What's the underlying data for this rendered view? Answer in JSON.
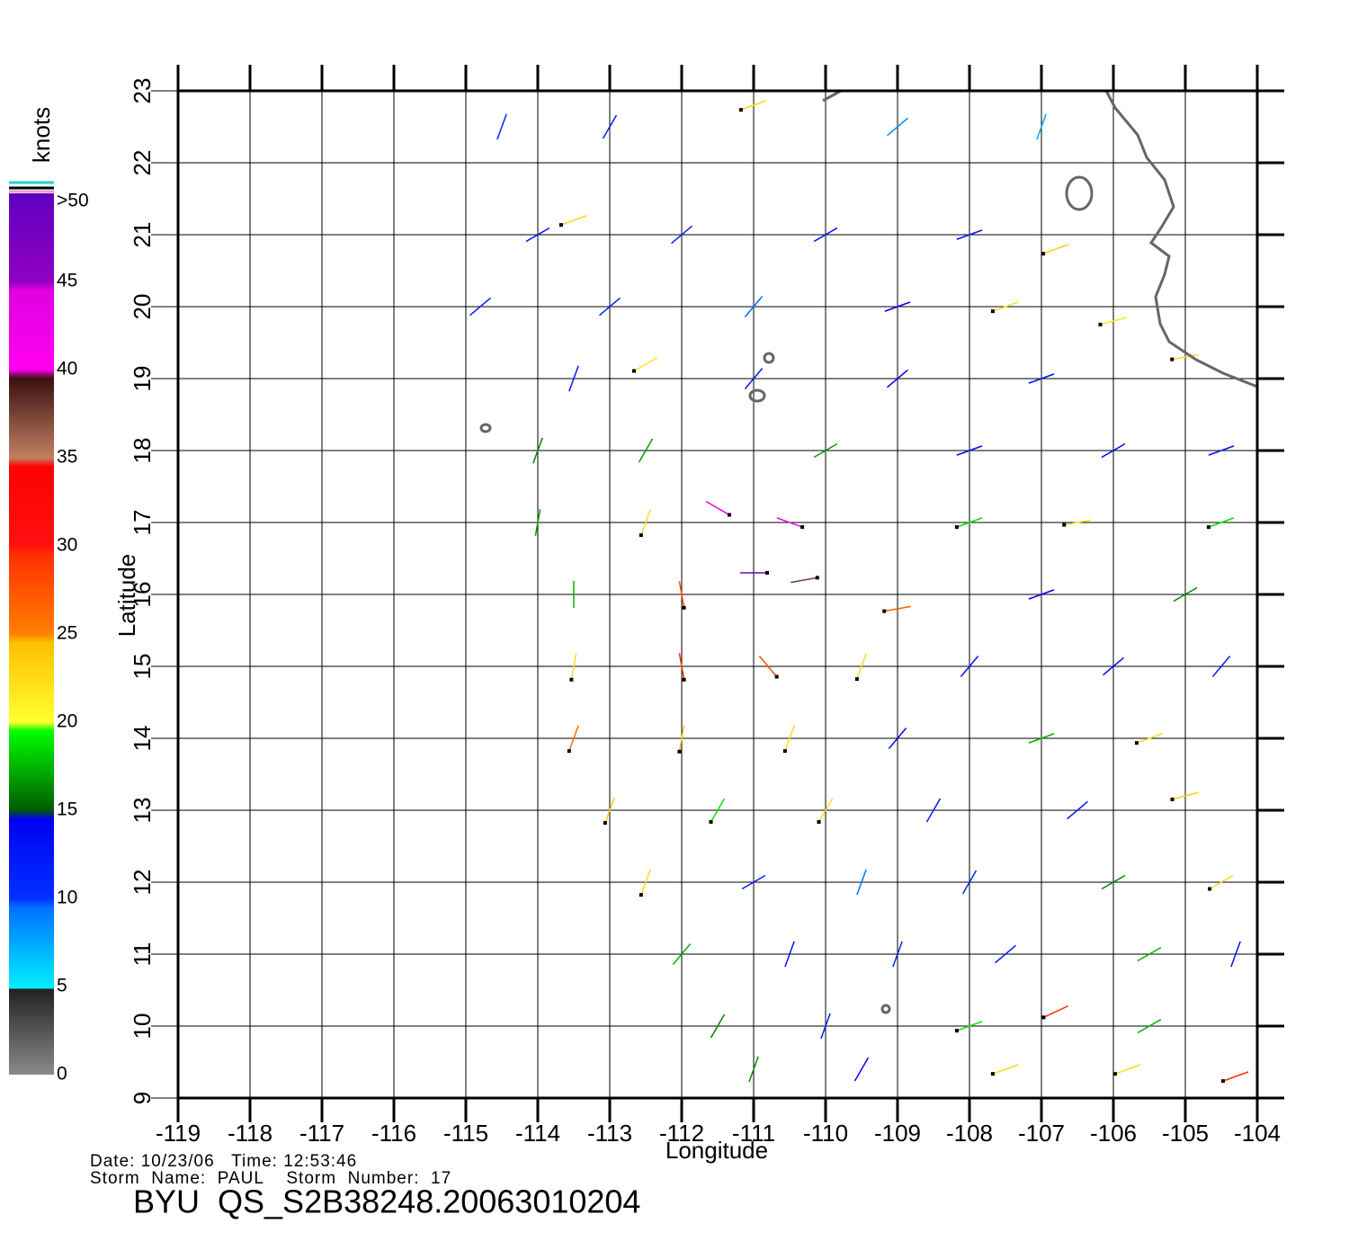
{
  "chart_data": {
    "type": "wind-map",
    "xlabel": "Longitude",
    "ylabel": "Latitude",
    "xlim": [
      -119,
      -104
    ],
    "ylim": [
      9,
      23
    ],
    "xticks": [
      -119,
      -118,
      -117,
      -116,
      -115,
      -114,
      -113,
      -112,
      -111,
      -110,
      -109,
      -108,
      -107,
      -106,
      -105,
      -104
    ],
    "yticks": [
      9,
      10,
      11,
      12,
      13,
      14,
      15,
      16,
      17,
      18,
      19,
      20,
      21,
      22,
      23
    ],
    "grid": true,
    "colorbar": {
      "label": "knots",
      "lim": [
        0,
        50
      ],
      "ticks": [
        0,
        5,
        10,
        15,
        20,
        25,
        30,
        35,
        40,
        45,
        {
          "value": 50,
          "label": ">50"
        }
      ]
    },
    "footer": {
      "date_line": "Date: 10/23/06   Time: 12:53:46",
      "storm_line": "Storm  Name:  PAUL    Storm  Number:  17",
      "file": "BYU  QS_S2B38248.20063010204"
    },
    "wind": [
      {
        "lon": -114.5,
        "lat": 22.5,
        "speed": 11,
        "direction": 200
      },
      {
        "lon": -113,
        "lat": 22.5,
        "speed": 12,
        "direction": 210
      },
      {
        "lon": -111,
        "lat": 22.8,
        "speed": 22,
        "direction": 250
      },
      {
        "lon": -109,
        "lat": 22.5,
        "speed": 9,
        "direction": 230
      },
      {
        "lon": -107,
        "lat": 22.5,
        "speed": 8,
        "direction": 200
      },
      {
        "lon": -114,
        "lat": 21,
        "speed": 14,
        "direction": 240
      },
      {
        "lon": -113.5,
        "lat": 21.2,
        "speed": 22,
        "direction": 250
      },
      {
        "lon": -112,
        "lat": 21,
        "speed": 11,
        "direction": 230
      },
      {
        "lon": -110,
        "lat": 21,
        "speed": 14,
        "direction": 240
      },
      {
        "lon": -108,
        "lat": 21,
        "speed": 13,
        "direction": 250
      },
      {
        "lon": -106.8,
        "lat": 20.8,
        "speed": 23,
        "direction": 250
      },
      {
        "lon": -114.8,
        "lat": 20,
        "speed": 12,
        "direction": 230
      },
      {
        "lon": -113,
        "lat": 20,
        "speed": 11,
        "direction": 230
      },
      {
        "lon": -111,
        "lat": 20,
        "speed": 10,
        "direction": 220
      },
      {
        "lon": -109,
        "lat": 20,
        "speed": 15,
        "direction": 250
      },
      {
        "lon": -107.5,
        "lat": 20,
        "speed": 22,
        "direction": 250
      },
      {
        "lon": -106,
        "lat": 19.8,
        "speed": 21,
        "direction": 255
      },
      {
        "lon": -113.5,
        "lat": 19,
        "speed": 12,
        "direction": 200
      },
      {
        "lon": -112.5,
        "lat": 19.2,
        "speed": 21,
        "direction": 240
      },
      {
        "lon": -111,
        "lat": 19,
        "speed": 12,
        "direction": 220
      },
      {
        "lon": -109,
        "lat": 19,
        "speed": 15,
        "direction": 230
      },
      {
        "lon": -107,
        "lat": 19,
        "speed": 13,
        "direction": 250
      },
      {
        "lon": -105,
        "lat": 19.3,
        "speed": 22,
        "direction": 260
      },
      {
        "lon": -114,
        "lat": 18,
        "speed": 16,
        "direction": 200
      },
      {
        "lon": -112.5,
        "lat": 18,
        "speed": 17,
        "direction": 210
      },
      {
        "lon": -110,
        "lat": 18,
        "speed": 17,
        "direction": 240
      },
      {
        "lon": -108,
        "lat": 18,
        "speed": 14,
        "direction": 250
      },
      {
        "lon": -106,
        "lat": 18,
        "speed": 14,
        "direction": 240
      },
      {
        "lon": -104.5,
        "lat": 18,
        "speed": 13,
        "direction": 250
      },
      {
        "lon": -114,
        "lat": 17,
        "speed": 17,
        "direction": 190
      },
      {
        "lon": -112.5,
        "lat": 17,
        "speed": 22,
        "direction": 200
      },
      {
        "lon": -111.5,
        "lat": 17.2,
        "speed": 45,
        "direction": 120
      },
      {
        "lon": -110.5,
        "lat": 17,
        "speed": 42,
        "direction": 110
      },
      {
        "lon": -108,
        "lat": 17,
        "speed": 20,
        "direction": 250
      },
      {
        "lon": -106.5,
        "lat": 17,
        "speed": 22,
        "direction": 260
      },
      {
        "lon": -104.5,
        "lat": 17,
        "speed": 20,
        "direction": 250
      },
      {
        "lon": -113.5,
        "lat": 16,
        "speed": 18,
        "direction": 180
      },
      {
        "lon": -112,
        "lat": 16,
        "speed": 28,
        "direction": 170
      },
      {
        "lon": -111,
        "lat": 16.3,
        "speed": 48,
        "direction": 90
      },
      {
        "lon": -110.3,
        "lat": 16.2,
        "speed": 38,
        "direction": 80
      },
      {
        "lon": -109,
        "lat": 15.8,
        "speed": 27,
        "direction": 260
      },
      {
        "lon": -107,
        "lat": 16,
        "speed": 15,
        "direction": 250
      },
      {
        "lon": -105,
        "lat": 16,
        "speed": 16,
        "direction": 240
      },
      {
        "lon": -113.5,
        "lat": 15,
        "speed": 22,
        "direction": 190
      },
      {
        "lon": -112,
        "lat": 15,
        "speed": 30,
        "direction": 170
      },
      {
        "lon": -110.8,
        "lat": 15,
        "speed": 28,
        "direction": 140
      },
      {
        "lon": -109.5,
        "lat": 15,
        "speed": 22,
        "direction": 200
      },
      {
        "lon": -108,
        "lat": 15,
        "speed": 13,
        "direction": 220
      },
      {
        "lon": -106,
        "lat": 15,
        "speed": 14,
        "direction": 230
      },
      {
        "lon": -104.5,
        "lat": 15,
        "speed": 12,
        "direction": 220
      },
      {
        "lon": -113.5,
        "lat": 14,
        "speed": 26,
        "direction": 200
      },
      {
        "lon": -112,
        "lat": 14,
        "speed": 24,
        "direction": 190
      },
      {
        "lon": -110.5,
        "lat": 14,
        "speed": 22,
        "direction": 200
      },
      {
        "lon": -109,
        "lat": 14,
        "speed": 14,
        "direction": 220
      },
      {
        "lon": -107,
        "lat": 14,
        "speed": 18,
        "direction": 250
      },
      {
        "lon": -105.5,
        "lat": 14,
        "speed": 22,
        "direction": 250
      },
      {
        "lon": -113,
        "lat": 13,
        "speed": 24,
        "direction": 200
      },
      {
        "lon": -111.5,
        "lat": 13,
        "speed": 20,
        "direction": 210
      },
      {
        "lon": -110,
        "lat": 13,
        "speed": 22,
        "direction": 210
      },
      {
        "lon": -108.5,
        "lat": 13,
        "speed": 12,
        "direction": 210
      },
      {
        "lon": -106.5,
        "lat": 13,
        "speed": 13,
        "direction": 230
      },
      {
        "lon": -105,
        "lat": 13.2,
        "speed": 23,
        "direction": 255
      },
      {
        "lon": -112.5,
        "lat": 12,
        "speed": 22,
        "direction": 200
      },
      {
        "lon": -111,
        "lat": 12,
        "speed": 12,
        "direction": 240
      },
      {
        "lon": -109.5,
        "lat": 12,
        "speed": 10,
        "direction": 200
      },
      {
        "lon": -108,
        "lat": 12,
        "speed": 11,
        "direction": 210
      },
      {
        "lon": -106,
        "lat": 12,
        "speed": 16,
        "direction": 240
      },
      {
        "lon": -104.5,
        "lat": 12,
        "speed": 22,
        "direction": 240
      },
      {
        "lon": -112,
        "lat": 11,
        "speed": 18,
        "direction": 220
      },
      {
        "lon": -110.5,
        "lat": 11,
        "speed": 13,
        "direction": 200
      },
      {
        "lon": -109,
        "lat": 11,
        "speed": 11,
        "direction": 200
      },
      {
        "lon": -107.5,
        "lat": 11,
        "speed": 12,
        "direction": 230
      },
      {
        "lon": -105.5,
        "lat": 11,
        "speed": 18,
        "direction": 240
      },
      {
        "lon": -104.3,
        "lat": 11,
        "speed": 13,
        "direction": 200
      },
      {
        "lon": -111.5,
        "lat": 10,
        "speed": 16,
        "direction": 210
      },
      {
        "lon": -110,
        "lat": 10,
        "speed": 12,
        "direction": 200
      },
      {
        "lon": -108,
        "lat": 10,
        "speed": 20,
        "direction": 250
      },
      {
        "lon": -106.8,
        "lat": 10.2,
        "speed": 30,
        "direction": 245
      },
      {
        "lon": -105.5,
        "lat": 10,
        "speed": 18,
        "direction": 240
      },
      {
        "lon": -111,
        "lat": 9.4,
        "speed": 16,
        "direction": 200
      },
      {
        "lon": -109.5,
        "lat": 9.4,
        "speed": 14,
        "direction": 210
      },
      {
        "lon": -107.5,
        "lat": 9.4,
        "speed": 22,
        "direction": 250
      },
      {
        "lon": -105.8,
        "lat": 9.4,
        "speed": 22,
        "direction": 250
      },
      {
        "lon": -104.3,
        "lat": 9.3,
        "speed": 30,
        "direction": 250
      }
    ]
  }
}
